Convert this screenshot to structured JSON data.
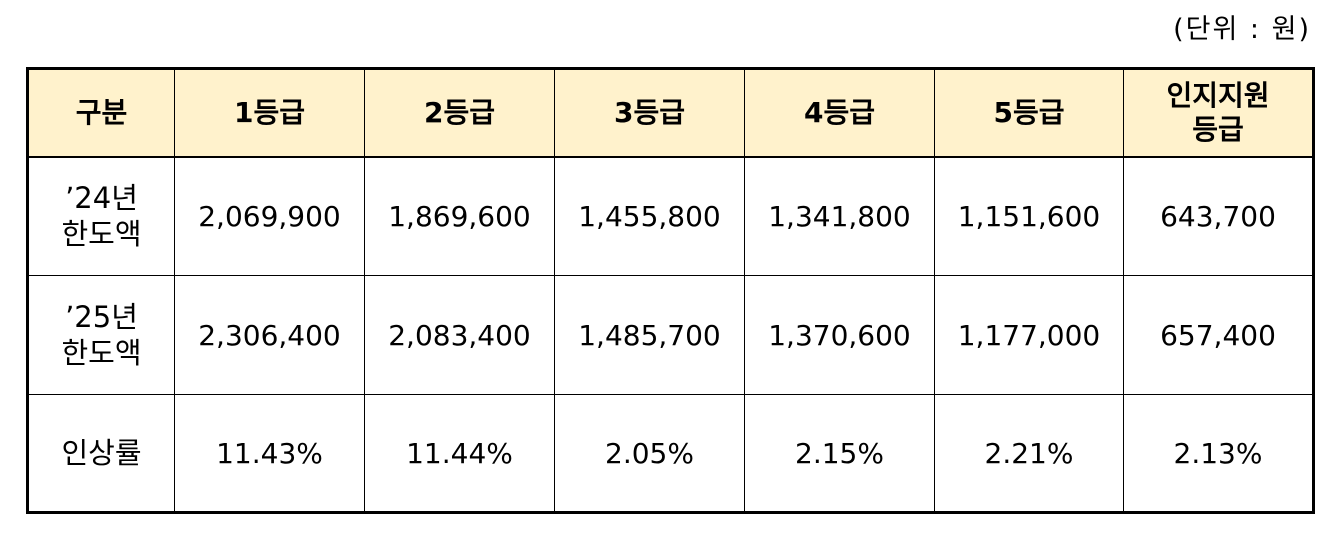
{
  "unit_note": "(단위 : 원)",
  "table": {
    "header": {
      "category": "구분",
      "grades": [
        "1등급",
        "2등급",
        "3등급",
        "4등급",
        "5등급"
      ],
      "cognitive_line1": "인지지원",
      "cognitive_line2": "등급"
    },
    "rows": [
      {
        "label_line1": "’24년",
        "label_line2": "한도액",
        "values": [
          "2,069,900",
          "1,869,600",
          "1,455,800",
          "1,341,800",
          "1,151,600",
          "643,700"
        ]
      },
      {
        "label_line1": "’25년",
        "label_line2": "한도액",
        "values": [
          "2,306,400",
          "2,083,400",
          "1,485,700",
          "1,370,600",
          "1,177,000",
          "657,400"
        ]
      },
      {
        "label": "인상률",
        "values": [
          "11.43%",
          "11.44%",
          "2.05%",
          "2.15%",
          "2.21%",
          "2.13%"
        ]
      }
    ]
  }
}
